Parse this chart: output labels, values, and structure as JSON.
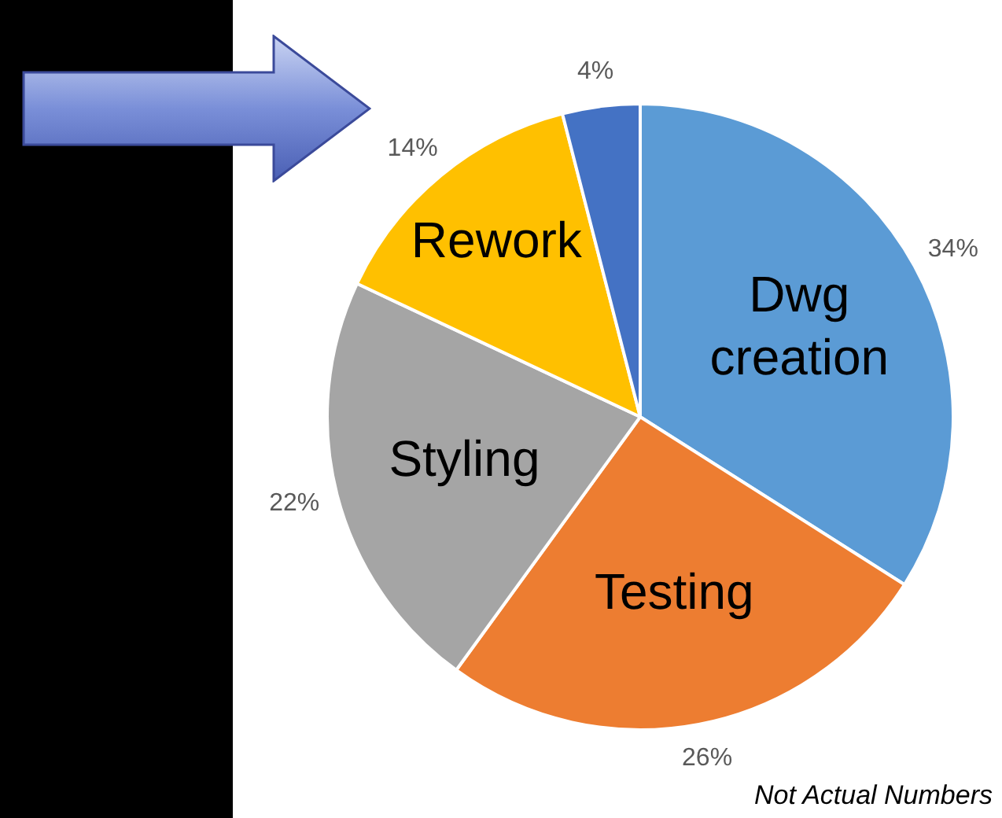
{
  "chart_data": {
    "type": "pie",
    "categories": [
      "Dwg creation",
      "Testing",
      "Styling",
      "Rework",
      null
    ],
    "values": [
      34,
      26,
      22,
      14,
      4
    ],
    "value_labels": [
      "34%",
      "26%",
      "22%",
      "14%",
      "4%"
    ],
    "colors": [
      "#5b9bd5",
      "#ed7d31",
      "#a5a5a5",
      "#ffc000",
      "#4472c4"
    ],
    "legend": false,
    "annotations": [
      "Not Actual Numbers"
    ]
  }
}
